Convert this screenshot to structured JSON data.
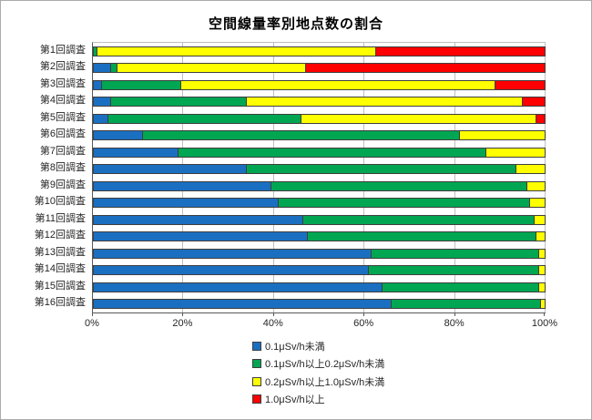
{
  "title": "空間線量率別地点数の割合",
  "colors": {
    "series_blue": "#1b6fc1",
    "series_green": "#00a651",
    "series_yellow": "#ffff00",
    "series_red": "#fe0000",
    "gridline": "#bfbfbf",
    "axis_line": "#595959",
    "segment_border": "#3f3f3f",
    "text": "#262626"
  },
  "chart_data": {
    "type": "bar",
    "stacked": true,
    "orientation": "horizontal",
    "title": "空間線量率別地点数の割合",
    "xlabel": "",
    "ylabel": "",
    "xlim": [
      0,
      100
    ],
    "grid": true,
    "legend_position": "bottom",
    "x_ticks": [
      {
        "value": 0,
        "label": "0%"
      },
      {
        "value": 20,
        "label": "20%"
      },
      {
        "value": 40,
        "label": "40%"
      },
      {
        "value": 60,
        "label": "60%"
      },
      {
        "value": 80,
        "label": "80%"
      },
      {
        "value": 100,
        "label": "100%"
      }
    ],
    "categories": [
      "第1回調査",
      "第2回調査",
      "第3回調査",
      "第4回調査",
      "第5回調査",
      "第6回調査",
      "第7回調査",
      "第8回調査",
      "第9回調査",
      "第10回調査",
      "第11回調査",
      "第12回調査",
      "第13回調査",
      "第14回調査",
      "第15回調査",
      "第16回調査"
    ],
    "series": [
      {
        "name": "0.1μSv/h未満",
        "color": "#1b6fc1",
        "values": [
          0,
          4,
          2,
          4,
          3.5,
          11,
          19,
          34,
          39.5,
          41,
          46.5,
          47.5,
          61.5,
          61,
          64,
          66
        ]
      },
      {
        "name": "0.1μSv/h以上0.2μSv/h未満",
        "color": "#00a651",
        "values": [
          1,
          1.5,
          17.5,
          30,
          42.5,
          70,
          68,
          59.5,
          56.5,
          55.5,
          51,
          50.5,
          37,
          37.5,
          34.5,
          33
        ]
      },
      {
        "name": "0.2μSv/h以上1.0μSv/h未満",
        "color": "#ffff00",
        "values": [
          61.5,
          41.5,
          69.5,
          61,
          52,
          19,
          13,
          6.5,
          4,
          3.5,
          2.5,
          2,
          1.5,
          1.5,
          1.5,
          1
        ]
      },
      {
        "name": "1.0μSv/h以上",
        "color": "#fe0000",
        "values": [
          37.5,
          53,
          11,
          5,
          2,
          0,
          0,
          0,
          0,
          0,
          0,
          0,
          0,
          0,
          0,
          0
        ]
      }
    ]
  }
}
